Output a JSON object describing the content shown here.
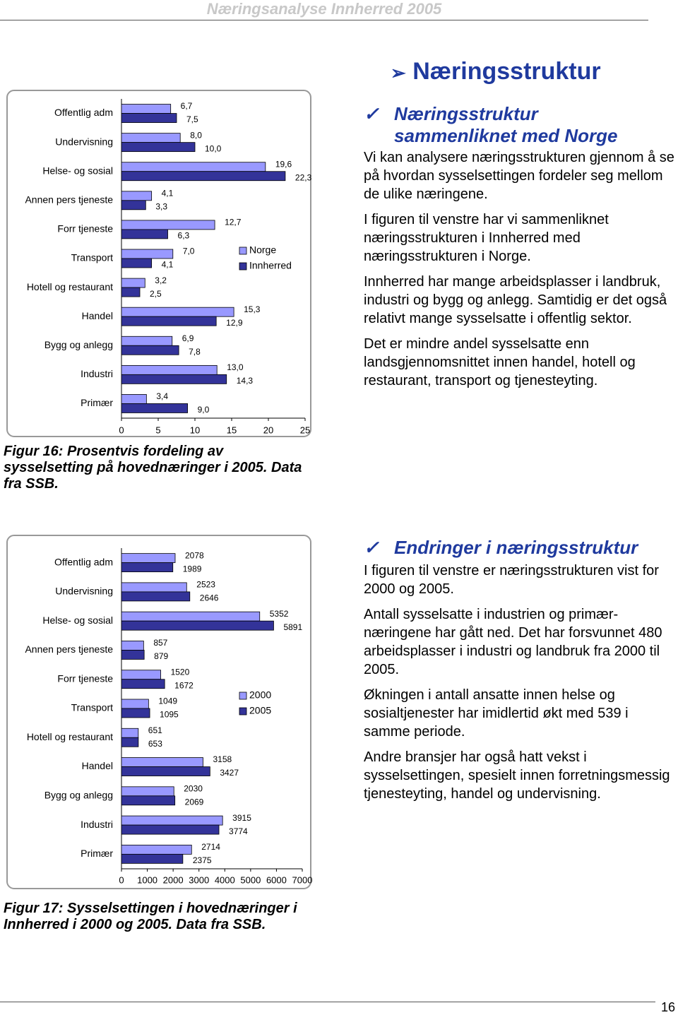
{
  "header": "Næringsanalyse Innherred 2005",
  "page_number": "16",
  "section_title": "Næringsstruktur",
  "part1": {
    "title": "Næringsstruktur sammenliknet med Norge",
    "paragraphs": [
      "Vi kan analysere næringsstrukturen gjennom å se på hvordan sysselsettingen fordeler seg mellom de ulike næringene.",
      "I figuren til venstre har vi sammenliknet næringsstrukturen i Innherred med næringsstrukturen i Norge.",
      "Innherred har mange arbeidsplasser i landbruk, industri og bygg og anlegg. Samtidig er det også relativt mange sysselsatte i offentlig sektor.",
      "Det er mindre andel sysselsatte enn landsgjennomsnittet innen handel, hotell og restaurant, transport og tjenesteyting."
    ]
  },
  "part2": {
    "title": "Endringer i næringsstruktur",
    "paragraphs": [
      "I figuren til venstre er næringsstrukturen vist for 2000 og 2005.",
      "Antall sysselsatte i industrien og primær-næringene har gått ned. Det har forsvunnet 480 arbeidsplasser i industri og landbruk fra 2000 til 2005.",
      "Økningen i antall ansatte innen helse og sosialtjenester har imidlertid økt med 539 i samme periode.",
      "Andre bransjer har også hatt vekst i sysselsettingen, spesielt innen forretningsmessig tjenesteyting, handel og undervisning."
    ]
  },
  "chart_data": [
    {
      "type": "hbar",
      "caption": "Figur 16: Prosentvis fordeling av sysselsetting på hovednæringer i 2005. Data fra SSB.",
      "categories": [
        "Offentlig adm",
        "Undervisning",
        "Helse- og sosial",
        "Annen pers tjeneste",
        "Forr tjeneste",
        "Transport",
        "Hotell og restaurant",
        "Handel",
        "Bygg og anlegg",
        "Industri",
        "Primær"
      ],
      "series": [
        {
          "name": "Norge",
          "color": "#9999ff",
          "values": [
            6.7,
            8.0,
            19.6,
            4.1,
            12.7,
            7.0,
            3.2,
            15.3,
            6.9,
            13.0,
            3.4
          ],
          "value_labels": [
            "6,7",
            "8,0",
            "19,6",
            "4,1",
            "12,7",
            "7,0",
            "3,2",
            "15,3",
            "6,9",
            "13,0",
            "3,4"
          ]
        },
        {
          "name": "Innherred",
          "color": "#333399",
          "values": [
            7.5,
            10.0,
            22.3,
            3.3,
            6.3,
            4.1,
            2.5,
            12.9,
            7.8,
            14.3,
            9.0
          ],
          "value_labels": [
            "7,5",
            "10,0",
            "22,3",
            "3,3",
            "6,3",
            "4,1",
            "2,5",
            "12,9",
            "7,8",
            "14,3",
            "9,0"
          ]
        }
      ],
      "xlim": [
        0,
        25
      ],
      "xticks": [
        0,
        5,
        10,
        15,
        20,
        25
      ],
      "legend": "right"
    },
    {
      "type": "hbar",
      "caption": "Figur 17: Sysselsettingen i hovednæringer i Innherred i 2000 og 2005. Data fra SSB.",
      "categories": [
        "Offentlig adm",
        "Undervisning",
        "Helse- og sosial",
        "Annen pers tjeneste",
        "Forr tjeneste",
        "Transport",
        "Hotell og restaurant",
        "Handel",
        "Bygg og anlegg",
        "Industri",
        "Primær"
      ],
      "series": [
        {
          "name": "2000",
          "color": "#9999ff",
          "values": [
            2078,
            2523,
            5352,
            857,
            1520,
            1049,
            651,
            3158,
            2030,
            3915,
            2714
          ]
        },
        {
          "name": "2005",
          "color": "#333399",
          "values": [
            1989,
            2646,
            5891,
            879,
            1672,
            1095,
            653,
            3427,
            2069,
            3774,
            2375
          ]
        }
      ],
      "xlim": [
        0,
        7000
      ],
      "xticks": [
        0,
        1000,
        2000,
        3000,
        4000,
        5000,
        6000,
        7000
      ],
      "legend": "right"
    }
  ]
}
